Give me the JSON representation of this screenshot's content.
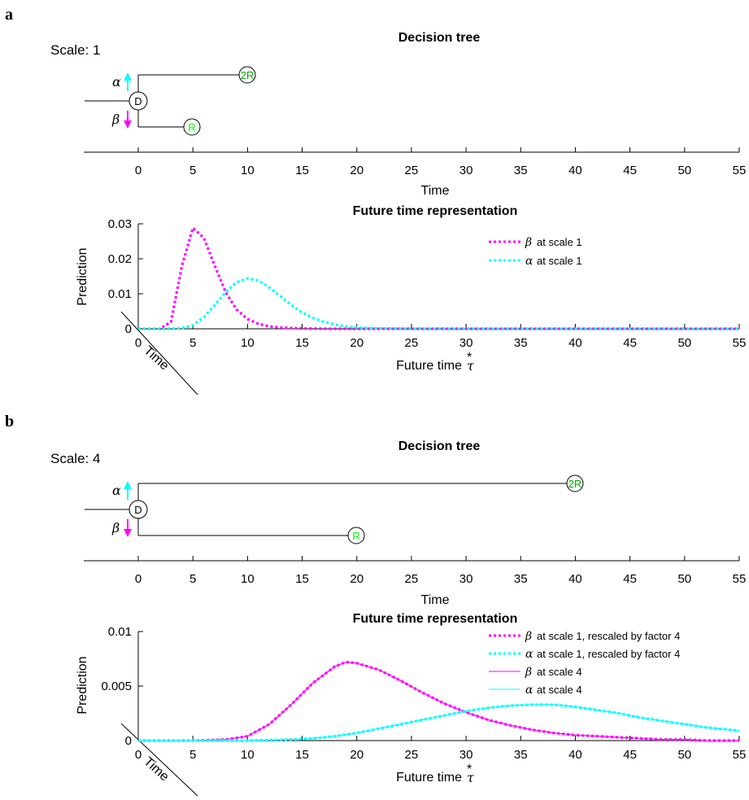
{
  "colors": {
    "beta": "#ff00ff",
    "alpha": "#00ffff",
    "reward": "#00cc00",
    "axis": "#000000"
  },
  "panels": [
    {
      "label": "a",
      "scale_text": "Scale: 1",
      "tree": {
        "title": "Decision tree",
        "xlabel": "Time",
        "xticks": [
          "0",
          "5",
          "10",
          "15",
          "20",
          "25",
          "30",
          "35",
          "40",
          "45",
          "50",
          "55"
        ],
        "xlim": [
          -5,
          55
        ],
        "decision_node": "D",
        "alpha_label": "α",
        "beta_label": "β",
        "alpha_outcome": {
          "label": "2R",
          "time": 10
        },
        "beta_outcome": {
          "label": "R",
          "time": 5
        }
      }
    },
    {
      "label": "b",
      "scale_text": "Scale: 4",
      "tree": {
        "title": "Decision tree",
        "xlabel": "Time",
        "xticks": [
          "0",
          "5",
          "10",
          "15",
          "20",
          "25",
          "30",
          "35",
          "40",
          "45",
          "50",
          "55"
        ],
        "xlim": [
          -5,
          55
        ],
        "decision_node": "D",
        "alpha_label": "α",
        "beta_label": "β",
        "alpha_outcome": {
          "label": "2R",
          "time": 40
        },
        "beta_outcome": {
          "label": "R",
          "time": 20
        }
      }
    }
  ],
  "chart_data": [
    {
      "type": "line",
      "title": "Future time representation",
      "xlabel": "Future time",
      "xlabel_symbol": "τ",
      "xlabel_star": "*",
      "ylabel": "Prediction",
      "ylim": [
        0,
        0.03
      ],
      "xlim": [
        0,
        55
      ],
      "xticks": [
        "0",
        "5",
        "10",
        "15",
        "20",
        "25",
        "30",
        "35",
        "40",
        "45",
        "50",
        "55"
      ],
      "yticks": [
        "0",
        "0.01",
        "0.02",
        "0.03"
      ],
      "time_axis_label": "Time",
      "legend_position": "top-right",
      "series": [
        {
          "name_symbol": "β",
          "name": "at scale 1",
          "color": "#ff00ff",
          "style": "dotted",
          "x": [
            0,
            1,
            2,
            3,
            4,
            5,
            6,
            7,
            8,
            9,
            10,
            11,
            12,
            13,
            14,
            15,
            16,
            17,
            18,
            19,
            20,
            22,
            25,
            30,
            35,
            40,
            45,
            50,
            55
          ],
          "y": [
            0,
            0,
            0,
            0.002,
            0.018,
            0.0288,
            0.026,
            0.018,
            0.0105,
            0.0055,
            0.0028,
            0.0014,
            0.0007,
            0.0004,
            0.0002,
            0.0001,
            5e-05,
            2e-05,
            1e-05,
            0,
            0,
            0,
            0,
            0,
            0,
            0,
            0,
            0,
            0
          ]
        },
        {
          "name_symbol": "α",
          "name": "at scale 1",
          "color": "#00ffff",
          "style": "dotted",
          "x": [
            0,
            1,
            2,
            3,
            4,
            5,
            6,
            7,
            8,
            9,
            10,
            11,
            12,
            13,
            14,
            15,
            16,
            17,
            18,
            19,
            20,
            22,
            25,
            30,
            35,
            40,
            45,
            50,
            55
          ],
          "y": [
            0,
            0,
            0,
            0,
            0.0002,
            0.001,
            0.0033,
            0.0068,
            0.0105,
            0.0133,
            0.0144,
            0.0138,
            0.0118,
            0.0093,
            0.0068,
            0.0047,
            0.0031,
            0.002,
            0.0012,
            0.0007,
            0.0004,
            0.0001,
            0,
            0,
            0,
            0,
            0,
            0,
            0
          ]
        }
      ]
    },
    {
      "type": "line",
      "title": "Future time representation",
      "xlabel": "Future time",
      "xlabel_symbol": "τ",
      "xlabel_star": "*",
      "ylabel": "Prediction",
      "ylim": [
        0,
        0.01
      ],
      "xlim": [
        0,
        55
      ],
      "xticks": [
        "0",
        "5",
        "10",
        "15",
        "20",
        "25",
        "30",
        "35",
        "40",
        "45",
        "50",
        "55"
      ],
      "yticks": [
        "0",
        "0.005",
        "0.01"
      ],
      "time_axis_label": "Time",
      "legend_position": "top-right",
      "series": [
        {
          "name_symbol": "β",
          "name": "at scale 1, rescaled by factor 4",
          "color": "#ff00ff",
          "style": "dotted",
          "x": [
            0,
            5,
            8,
            10,
            12,
            14,
            16,
            18,
            19,
            20,
            22,
            24,
            26,
            28,
            30,
            32,
            34,
            36,
            38,
            40,
            42,
            44,
            46,
            48,
            50,
            52,
            55
          ],
          "y": [
            0,
            0,
            0.0001,
            0.0004,
            0.0015,
            0.0033,
            0.0053,
            0.0068,
            0.0072,
            0.0071,
            0.0065,
            0.0055,
            0.0044,
            0.0034,
            0.0026,
            0.0019,
            0.0014,
            0.001,
            0.0007,
            0.0005,
            0.0004,
            0.0003,
            0.0002,
            0.0001,
            0.0001,
            0,
            0
          ]
        },
        {
          "name_symbol": "α",
          "name": "at scale 1, rescaled by factor 4",
          "color": "#00ffff",
          "style": "dotted",
          "x": [
            0,
            5,
            10,
            14,
            16,
            18,
            20,
            22,
            24,
            26,
            28,
            30,
            32,
            34,
            36,
            38,
            40,
            42,
            44,
            46,
            48,
            50,
            52,
            55
          ],
          "y": [
            0,
            0,
            0,
            0.0001,
            0.0002,
            0.0004,
            0.0007,
            0.0011,
            0.0015,
            0.0019,
            0.0023,
            0.0027,
            0.003,
            0.0032,
            0.0033,
            0.0033,
            0.0031,
            0.0028,
            0.0025,
            0.0021,
            0.0018,
            0.0015,
            0.0012,
            0.0009
          ]
        },
        {
          "name_symbol": "β",
          "name": "at scale 4",
          "color": "#ff00ff",
          "style": "solid",
          "x": [
            0,
            5,
            8,
            10,
            12,
            14,
            16,
            18,
            19,
            20,
            22,
            24,
            26,
            28,
            30,
            32,
            34,
            36,
            38,
            40,
            42,
            44,
            46,
            48,
            50,
            52,
            55
          ],
          "y": [
            0,
            0,
            0.0001,
            0.0004,
            0.0015,
            0.0033,
            0.0053,
            0.0068,
            0.0072,
            0.0071,
            0.0065,
            0.0055,
            0.0044,
            0.0034,
            0.0026,
            0.0019,
            0.0014,
            0.001,
            0.0007,
            0.0005,
            0.0004,
            0.0003,
            0.0002,
            0.0001,
            0.0001,
            0,
            0
          ]
        },
        {
          "name_symbol": "α",
          "name": "at scale 4",
          "color": "#00ffff",
          "style": "solid",
          "x": [
            0,
            5,
            10,
            14,
            16,
            18,
            20,
            22,
            24,
            26,
            28,
            30,
            32,
            34,
            36,
            38,
            40,
            42,
            44,
            46,
            48,
            50,
            52,
            55
          ],
          "y": [
            0,
            0,
            0,
            0.0001,
            0.0002,
            0.0004,
            0.0007,
            0.0011,
            0.0015,
            0.0019,
            0.0023,
            0.0027,
            0.003,
            0.0032,
            0.0033,
            0.0033,
            0.0031,
            0.0028,
            0.0025,
            0.0021,
            0.0018,
            0.0015,
            0.0012,
            0.0009
          ]
        }
      ]
    }
  ]
}
